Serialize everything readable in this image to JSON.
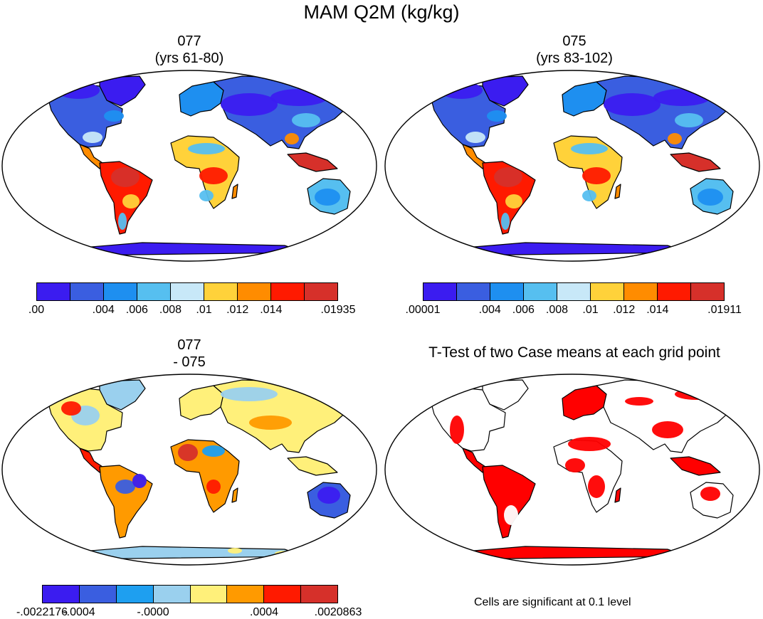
{
  "title": "MAM Q2M (kg/kg)",
  "panels": [
    {
      "id": "p077",
      "title_line1": "077",
      "title_line2": "(yrs 61-80)",
      "palette": [
        "#3b1cf0",
        "#3a5ee0",
        "#1e8ff0",
        "#56bff0",
        "#c8e8f8",
        "#ffd23a",
        "#ff8c00",
        "#ff1a00",
        "#d6302a"
      ],
      "tick_labels": [
        ".00",
        ".004",
        ".006",
        ".008",
        ".01",
        ".012",
        ".014",
        ".01935"
      ]
    },
    {
      "id": "p075",
      "title_line1": "075",
      "title_line2": "(yrs 83-102)",
      "palette": [
        "#3b1cf0",
        "#3a5ee0",
        "#1e8ff0",
        "#56bff0",
        "#c8e8f8",
        "#ffd23a",
        "#ff8c00",
        "#ff1a00",
        "#d6302a"
      ],
      "tick_labels": [
        ".00001",
        ".004",
        ".006",
        ".008",
        ".01",
        ".012",
        ".014",
        ".01911"
      ]
    },
    {
      "id": "pdiff",
      "title_line1": "077",
      "title_line2": "- 075",
      "palette": [
        "#3b1cf0",
        "#3a5ee0",
        "#1e9ff0",
        "#9ad0ee",
        "#fff07a",
        "#ff9a00",
        "#ff1a00",
        "#d6302a"
      ],
      "tick_labels": [
        "-.0022176",
        "-.0004",
        "-.0000",
        ".0004",
        ".0020863"
      ]
    },
    {
      "id": "pttest",
      "title_line1": "T-Test of two Case means at each grid point",
      "significance_color": "#ff0000",
      "note": "Cells are significant at 0.1 level"
    }
  ]
}
